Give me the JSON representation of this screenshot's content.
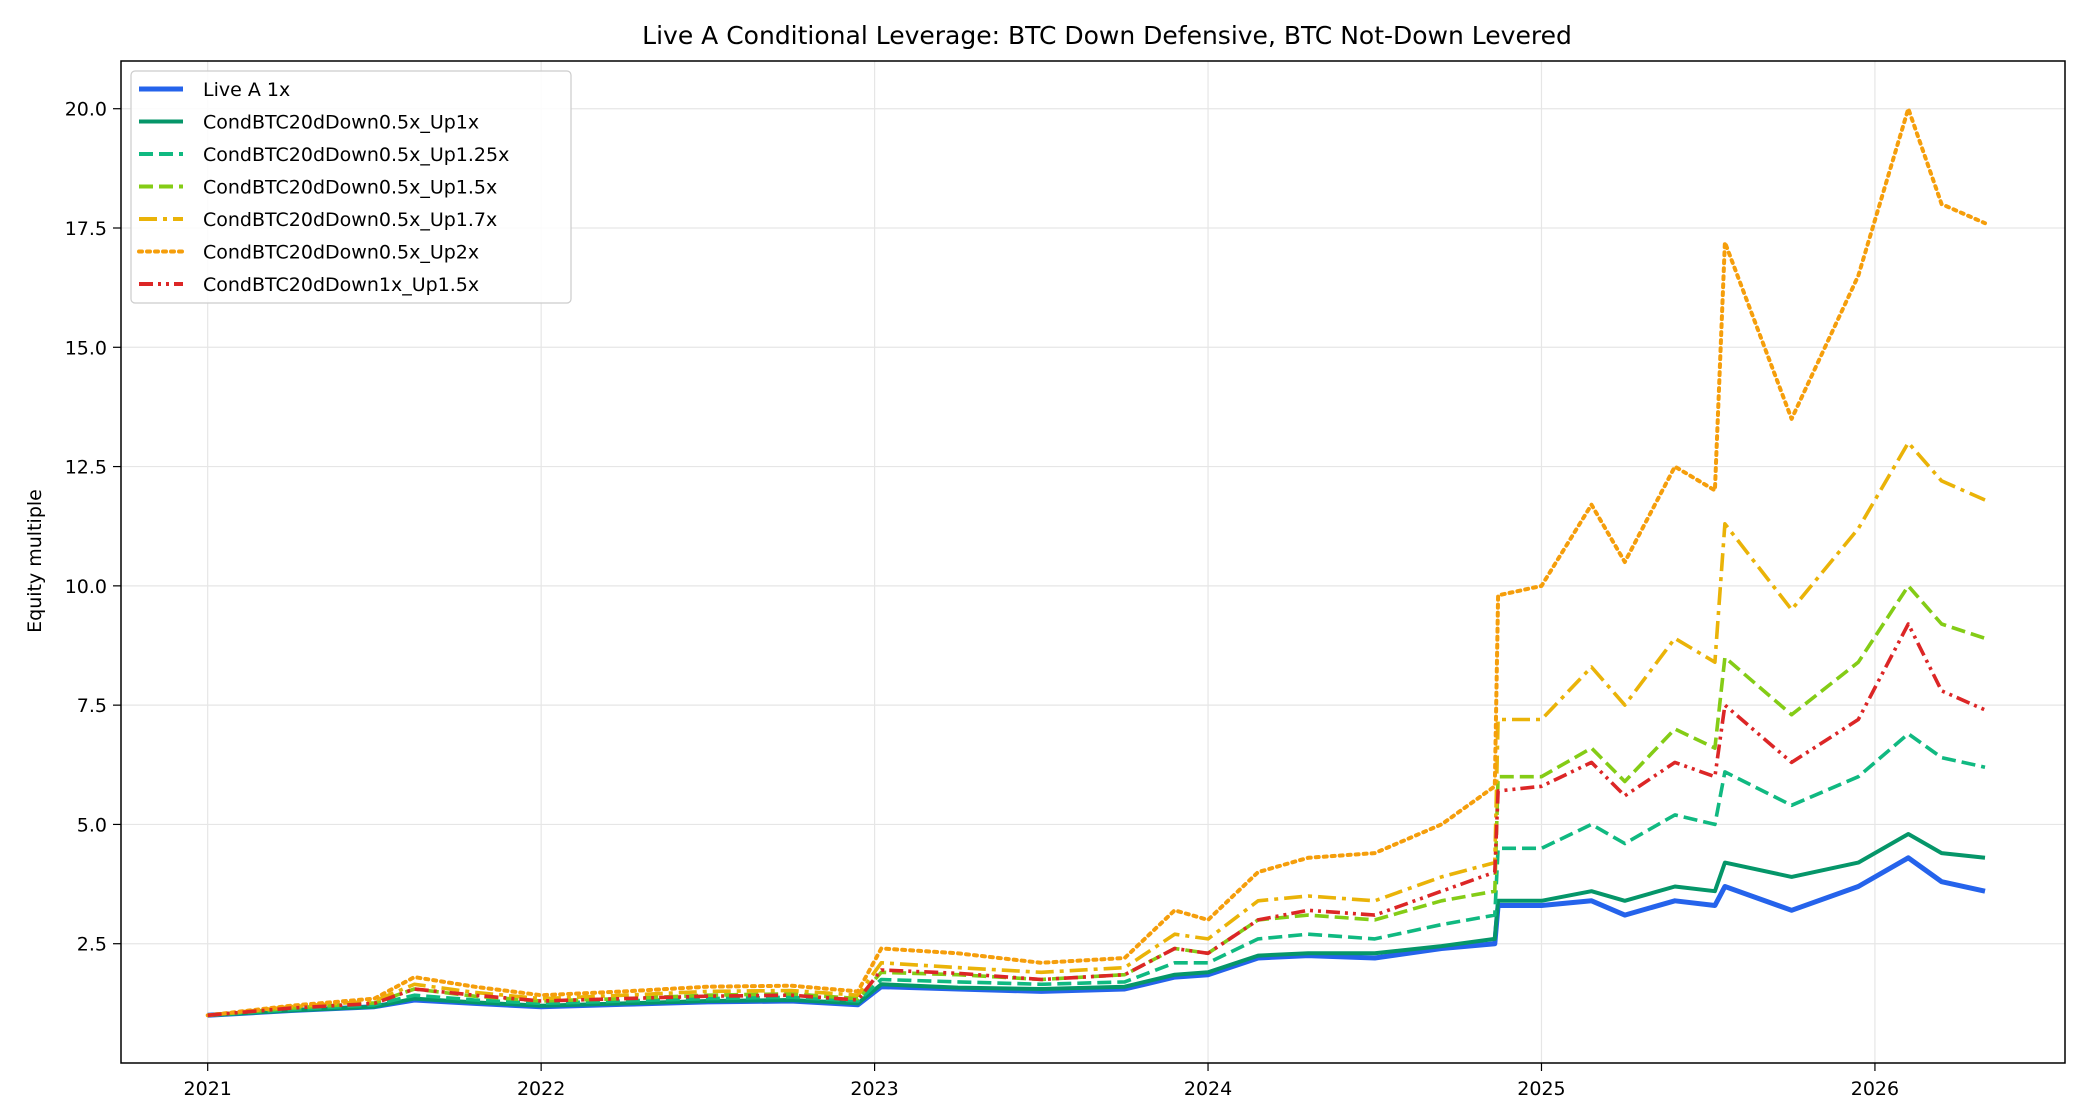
{
  "chart_data": {
    "type": "line",
    "title": "Live A Conditional Leverage: BTC Down Defensive, BTC Not-Down Levered",
    "xlabel": "",
    "ylabel": "Equity multiple",
    "xlim": [
      2020.74,
      2026.57
    ],
    "ylim": [
      0.0,
      21.0
    ],
    "x_ticks": [
      "2021",
      "2022",
      "2023",
      "2024",
      "2025",
      "2026"
    ],
    "y_ticks": [
      "2.5",
      "5.0",
      "7.5",
      "10.0",
      "12.5",
      "15.0",
      "17.5",
      "20.0"
    ],
    "grid": true,
    "legend_position": "upper-left",
    "series": [
      {
        "name": "Live A 1x",
        "color": "#2563eb",
        "style": "solid",
        "x": [
          2021.0,
          2021.25,
          2021.5,
          2021.62,
          2021.8,
          2022.0,
          2022.25,
          2022.5,
          2022.75,
          2022.95,
          2023.02,
          2023.25,
          2023.5,
          2023.75,
          2023.9,
          2024.0,
          2024.15,
          2024.3,
          2024.5,
          2024.7,
          2024.86,
          2024.87,
          2025.0,
          2025.15,
          2025.25,
          2025.4,
          2025.52,
          2025.55,
          2025.75,
          2025.95,
          2026.1,
          2026.2,
          2026.33
        ],
        "y": [
          1.0,
          1.1,
          1.18,
          1.32,
          1.25,
          1.18,
          1.23,
          1.28,
          1.3,
          1.22,
          1.6,
          1.55,
          1.5,
          1.55,
          1.8,
          1.85,
          2.2,
          2.25,
          2.2,
          2.4,
          2.5,
          3.3,
          3.3,
          3.4,
          3.1,
          3.4,
          3.3,
          3.7,
          3.2,
          3.7,
          4.3,
          3.8,
          3.6
        ]
      },
      {
        "name": "CondBTC20dDown0.5x_Up1x",
        "color": "#059669",
        "style": "solid",
        "x": [
          2021.0,
          2021.25,
          2021.5,
          2021.62,
          2021.8,
          2022.0,
          2022.25,
          2022.5,
          2022.75,
          2022.95,
          2023.02,
          2023.25,
          2023.5,
          2023.75,
          2023.9,
          2024.0,
          2024.15,
          2024.3,
          2024.5,
          2024.7,
          2024.86,
          2024.87,
          2025.0,
          2025.15,
          2025.25,
          2025.4,
          2025.52,
          2025.55,
          2025.75,
          2025.95,
          2026.1,
          2026.2,
          2026.33
        ],
        "y": [
          1.0,
          1.1,
          1.18,
          1.35,
          1.27,
          1.2,
          1.25,
          1.3,
          1.32,
          1.25,
          1.65,
          1.58,
          1.55,
          1.6,
          1.85,
          1.9,
          2.25,
          2.3,
          2.3,
          2.45,
          2.6,
          3.4,
          3.4,
          3.6,
          3.4,
          3.7,
          3.6,
          4.2,
          3.9,
          4.2,
          4.8,
          4.4,
          4.3
        ]
      },
      {
        "name": "CondBTC20dDown0.5x_Up1.25x",
        "color": "#10b981",
        "style": "dashed",
        "x": [
          2021.0,
          2021.25,
          2021.5,
          2021.62,
          2021.8,
          2022.0,
          2022.25,
          2022.5,
          2022.75,
          2022.95,
          2023.02,
          2023.25,
          2023.5,
          2023.75,
          2023.9,
          2024.0,
          2024.15,
          2024.3,
          2024.5,
          2024.7,
          2024.86,
          2024.87,
          2025.0,
          2025.15,
          2025.25,
          2025.4,
          2025.52,
          2025.55,
          2025.75,
          2025.95,
          2026.1,
          2026.2,
          2026.33
        ],
        "y": [
          1.0,
          1.12,
          1.22,
          1.42,
          1.32,
          1.25,
          1.3,
          1.35,
          1.38,
          1.3,
          1.75,
          1.7,
          1.65,
          1.7,
          2.1,
          2.1,
          2.6,
          2.7,
          2.6,
          2.9,
          3.1,
          4.5,
          4.5,
          5.0,
          4.6,
          5.2,
          5.0,
          6.1,
          5.4,
          6.0,
          6.9,
          6.4,
          6.2
        ]
      },
      {
        "name": "CondBTC20dDown0.5x_Up1.5x",
        "color": "#84cc16",
        "style": "dashed",
        "x": [
          2021.0,
          2021.25,
          2021.5,
          2021.62,
          2021.8,
          2022.0,
          2022.25,
          2022.5,
          2022.75,
          2022.95,
          2023.02,
          2023.25,
          2023.5,
          2023.75,
          2023.9,
          2024.0,
          2024.15,
          2024.3,
          2024.5,
          2024.7,
          2024.86,
          2024.87,
          2025.0,
          2025.15,
          2025.25,
          2025.4,
          2025.52,
          2025.55,
          2025.75,
          2025.95,
          2026.1,
          2026.2,
          2026.33
        ],
        "y": [
          1.0,
          1.15,
          1.26,
          1.55,
          1.4,
          1.3,
          1.35,
          1.42,
          1.45,
          1.35,
          1.9,
          1.85,
          1.75,
          1.85,
          2.4,
          2.3,
          3.0,
          3.1,
          3.0,
          3.4,
          3.6,
          6.0,
          6.0,
          6.6,
          5.9,
          7.0,
          6.6,
          8.5,
          7.3,
          8.4,
          10.0,
          9.2,
          8.9
        ]
      },
      {
        "name": "CondBTC20dDown0.5x_Up1.7x",
        "color": "#eab308",
        "style": "dashdot",
        "x": [
          2021.0,
          2021.25,
          2021.5,
          2021.62,
          2021.8,
          2022.0,
          2022.25,
          2022.5,
          2022.75,
          2022.95,
          2023.02,
          2023.25,
          2023.5,
          2023.75,
          2023.9,
          2024.0,
          2024.15,
          2024.3,
          2024.5,
          2024.7,
          2024.86,
          2024.87,
          2025.0,
          2025.15,
          2025.25,
          2025.4,
          2025.52,
          2025.55,
          2025.75,
          2025.95,
          2026.1,
          2026.2,
          2026.33
        ],
        "y": [
          1.0,
          1.18,
          1.3,
          1.65,
          1.48,
          1.35,
          1.42,
          1.5,
          1.52,
          1.42,
          2.1,
          2.0,
          1.9,
          2.0,
          2.7,
          2.6,
          3.4,
          3.5,
          3.4,
          3.9,
          4.2,
          7.2,
          7.2,
          8.3,
          7.5,
          8.9,
          8.4,
          11.3,
          9.5,
          11.2,
          13.0,
          12.2,
          11.8
        ]
      },
      {
        "name": "CondBTC20dDown0.5x_Up2x",
        "color": "#f59e0b",
        "style": "dotted",
        "x": [
          2021.0,
          2021.25,
          2021.5,
          2021.62,
          2021.8,
          2022.0,
          2022.25,
          2022.5,
          2022.75,
          2022.95,
          2023.02,
          2023.25,
          2023.5,
          2023.75,
          2023.9,
          2024.0,
          2024.15,
          2024.3,
          2024.5,
          2024.7,
          2024.86,
          2024.87,
          2025.0,
          2025.15,
          2025.25,
          2025.4,
          2025.52,
          2025.55,
          2025.75,
          2025.95,
          2026.1,
          2026.2,
          2026.33
        ],
        "y": [
          1.0,
          1.2,
          1.35,
          1.8,
          1.6,
          1.42,
          1.5,
          1.6,
          1.62,
          1.5,
          2.4,
          2.3,
          2.1,
          2.2,
          3.2,
          3.0,
          4.0,
          4.3,
          4.4,
          5.0,
          5.8,
          9.8,
          10.0,
          11.7,
          10.5,
          12.5,
          12.0,
          17.2,
          13.5,
          16.5,
          20.0,
          18.0,
          17.6
        ]
      },
      {
        "name": "CondBTC20dDown1x_Up1.5x",
        "color": "#dc2626",
        "style": "dashdotdot",
        "x": [
          2021.0,
          2021.25,
          2021.5,
          2021.62,
          2021.8,
          2022.0,
          2022.25,
          2022.5,
          2022.75,
          2022.95,
          2023.02,
          2023.25,
          2023.5,
          2023.75,
          2023.9,
          2024.0,
          2024.15,
          2024.3,
          2024.5,
          2024.7,
          2024.86,
          2024.87,
          2025.0,
          2025.15,
          2025.25,
          2025.4,
          2025.52,
          2025.55,
          2025.75,
          2025.95,
          2026.1,
          2026.2,
          2026.33
        ],
        "y": [
          1.0,
          1.15,
          1.25,
          1.55,
          1.42,
          1.3,
          1.35,
          1.4,
          1.42,
          1.32,
          1.95,
          1.88,
          1.75,
          1.85,
          2.4,
          2.3,
          3.0,
          3.2,
          3.1,
          3.6,
          4.0,
          5.7,
          5.8,
          6.3,
          5.6,
          6.3,
          6.0,
          7.5,
          6.3,
          7.2,
          9.2,
          7.8,
          7.4
        ]
      }
    ]
  }
}
